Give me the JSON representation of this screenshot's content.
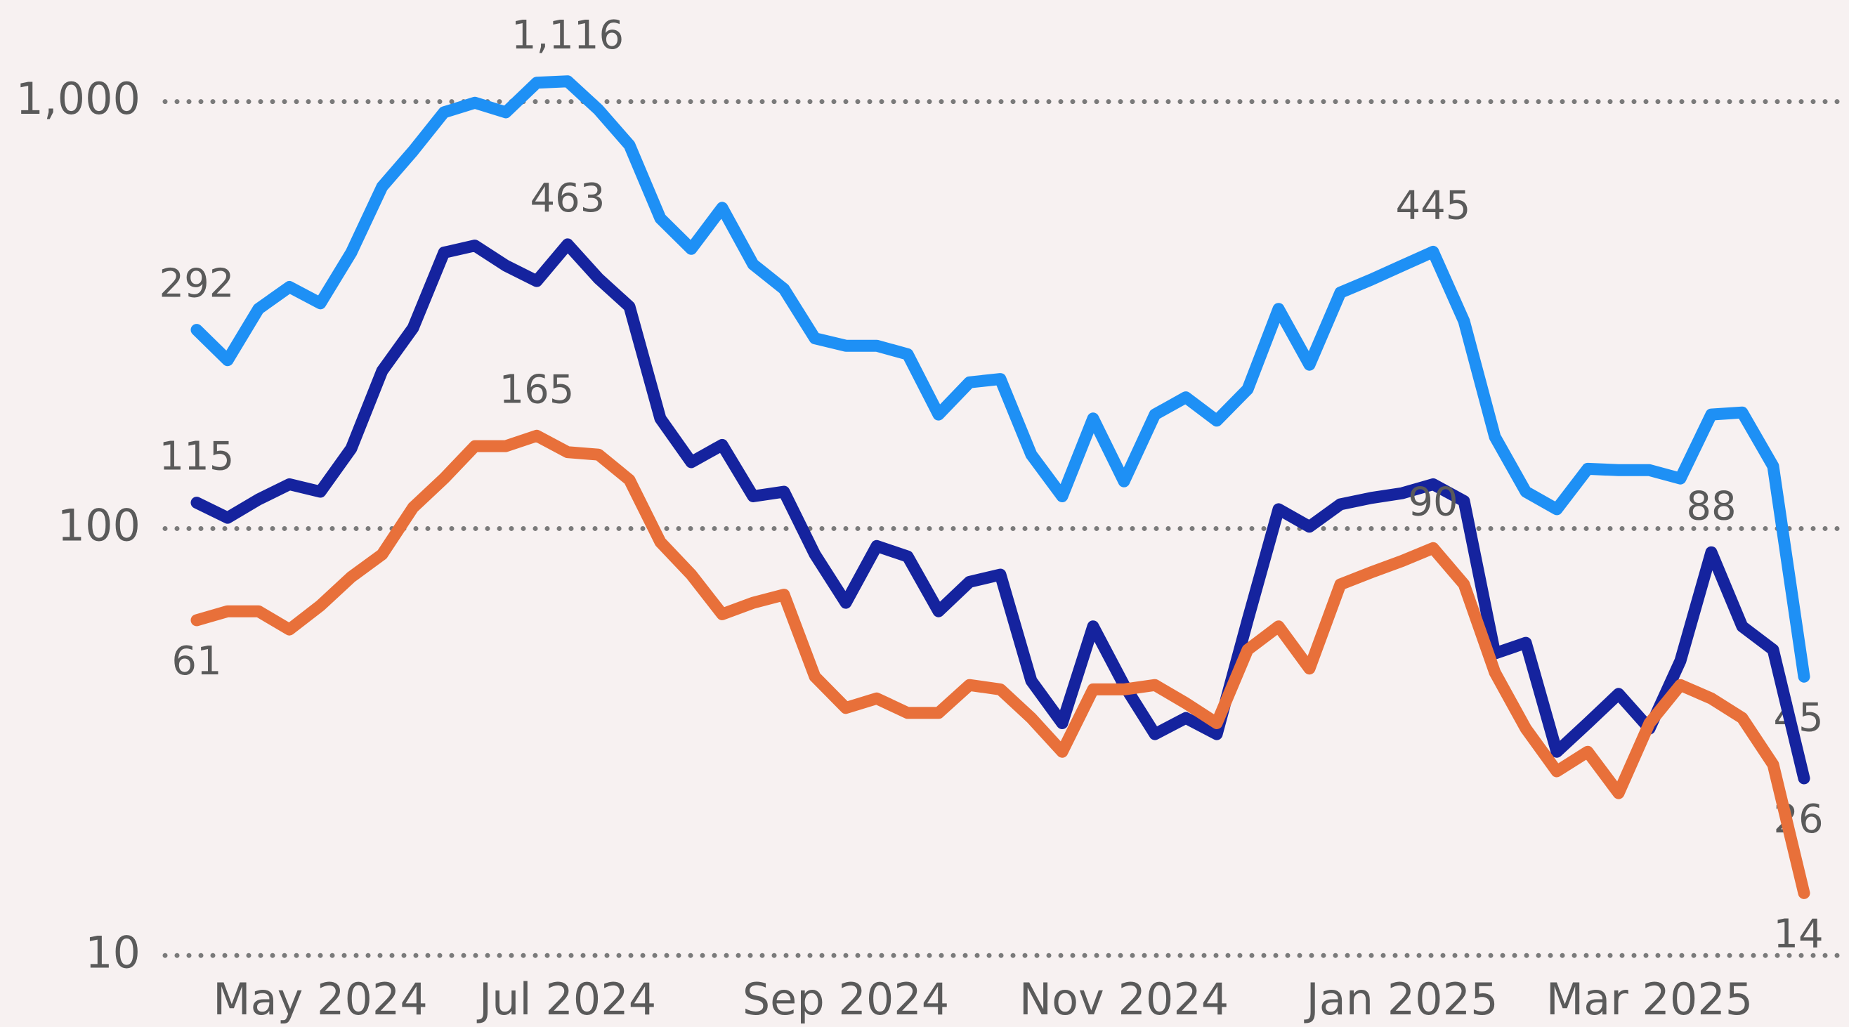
{
  "chart_data": {
    "type": "line",
    "log_scale": true,
    "grid": true,
    "ylim": [
      6.8,
      1730
    ],
    "yticks": [
      10,
      100,
      {
        "value": 1000,
        "label": "1,000"
      }
    ],
    "categories": [
      null,
      null,
      null,
      null,
      "May 2024",
      null,
      null,
      null,
      null,
      null,
      null,
      null,
      "Jul 2024",
      null,
      null,
      null,
      null,
      null,
      null,
      null,
      null,
      "Sep 2024",
      null,
      null,
      null,
      null,
      null,
      null,
      null,
      null,
      "Nov 2024",
      null,
      null,
      null,
      null,
      null,
      null,
      null,
      null,
      "Jan 2025",
      null,
      null,
      null,
      null,
      null,
      null,
      null,
      "Mar 2025",
      null,
      null,
      null,
      null,
      null
    ],
    "series": [
      {
        "color": "#1e90f5",
        "values": [
          292,
          248,
          327,
          368,
          337,
          443,
          632,
          766,
          944,
          994,
          944,
          1107,
          1116,
          957,
          791,
          533,
          452,
          564,
          416,
          364,
          279,
          268,
          268,
          256,
          185,
          220,
          224,
          149,
          119,
          181,
          129,
          185,
          203,
          179,
          212,
          327,
          242,
          357,
          383,
          413,
          445,
          306,
          164,
          122,
          111,
          138,
          137,
          137,
          131,
          185,
          187,
          140,
          45
        ],
        "value_labels": [
          "292",
          null,
          null,
          null,
          null,
          null,
          null,
          null,
          null,
          null,
          null,
          null,
          "1,116",
          null,
          null,
          null,
          null,
          null,
          null,
          null,
          null,
          null,
          null,
          null,
          null,
          null,
          null,
          null,
          null,
          null,
          null,
          null,
          null,
          null,
          null,
          null,
          null,
          null,
          null,
          null,
          "445",
          null,
          null,
          null,
          null,
          null,
          null,
          null,
          null,
          null,
          null,
          null,
          "45"
        ]
      },
      {
        "color": "#15239e",
        "values": [
          115,
          106,
          117,
          127,
          122,
          154,
          234,
          295,
          443,
          460,
          413,
          380,
          463,
          385,
          331,
          181,
          143,
          157,
          119,
          122,
          87,
          67,
          91,
          86,
          64,
          75,
          78,
          44,
          35,
          59,
          43,
          33,
          36,
          33,
          61,
          111,
          101,
          114,
          118,
          121,
          127,
          116,
          51,
          54,
          30,
          35,
          41,
          34,
          49,
          88,
          59,
          52,
          26
        ],
        "value_labels": [
          "115",
          null,
          null,
          null,
          null,
          null,
          null,
          null,
          null,
          null,
          null,
          null,
          "463",
          null,
          null,
          null,
          null,
          null,
          null,
          null,
          null,
          null,
          null,
          null,
          null,
          null,
          null,
          null,
          null,
          null,
          null,
          null,
          null,
          null,
          null,
          null,
          null,
          null,
          null,
          null,
          null,
          null,
          null,
          null,
          null,
          null,
          null,
          null,
          null,
          "88",
          null,
          null,
          "26"
        ]
      },
      {
        "color": "#e8703a",
        "values": [
          61,
          64,
          64,
          58,
          66,
          77,
          87,
          112,
          131,
          156,
          156,
          165,
          151,
          149,
          130,
          93,
          78,
          63,
          67,
          70,
          45,
          38,
          40,
          37,
          37,
          43,
          42,
          36,
          30,
          42,
          42,
          43,
          39,
          35,
          52,
          59,
          47,
          74,
          79,
          84,
          90,
          74,
          46,
          34,
          27,
          30,
          24,
          35,
          43,
          40,
          36,
          28,
          14
        ],
        "value_labels": [
          "61",
          null,
          null,
          null,
          null,
          null,
          null,
          null,
          null,
          null,
          null,
          "165",
          null,
          null,
          null,
          null,
          null,
          null,
          null,
          null,
          null,
          null,
          null,
          null,
          null,
          null,
          null,
          null,
          null,
          null,
          null,
          null,
          null,
          null,
          null,
          null,
          null,
          null,
          null,
          null,
          "90",
          null,
          null,
          null,
          null,
          null,
          null,
          null,
          null,
          null,
          null,
          null,
          "14"
        ]
      }
    ]
  }
}
